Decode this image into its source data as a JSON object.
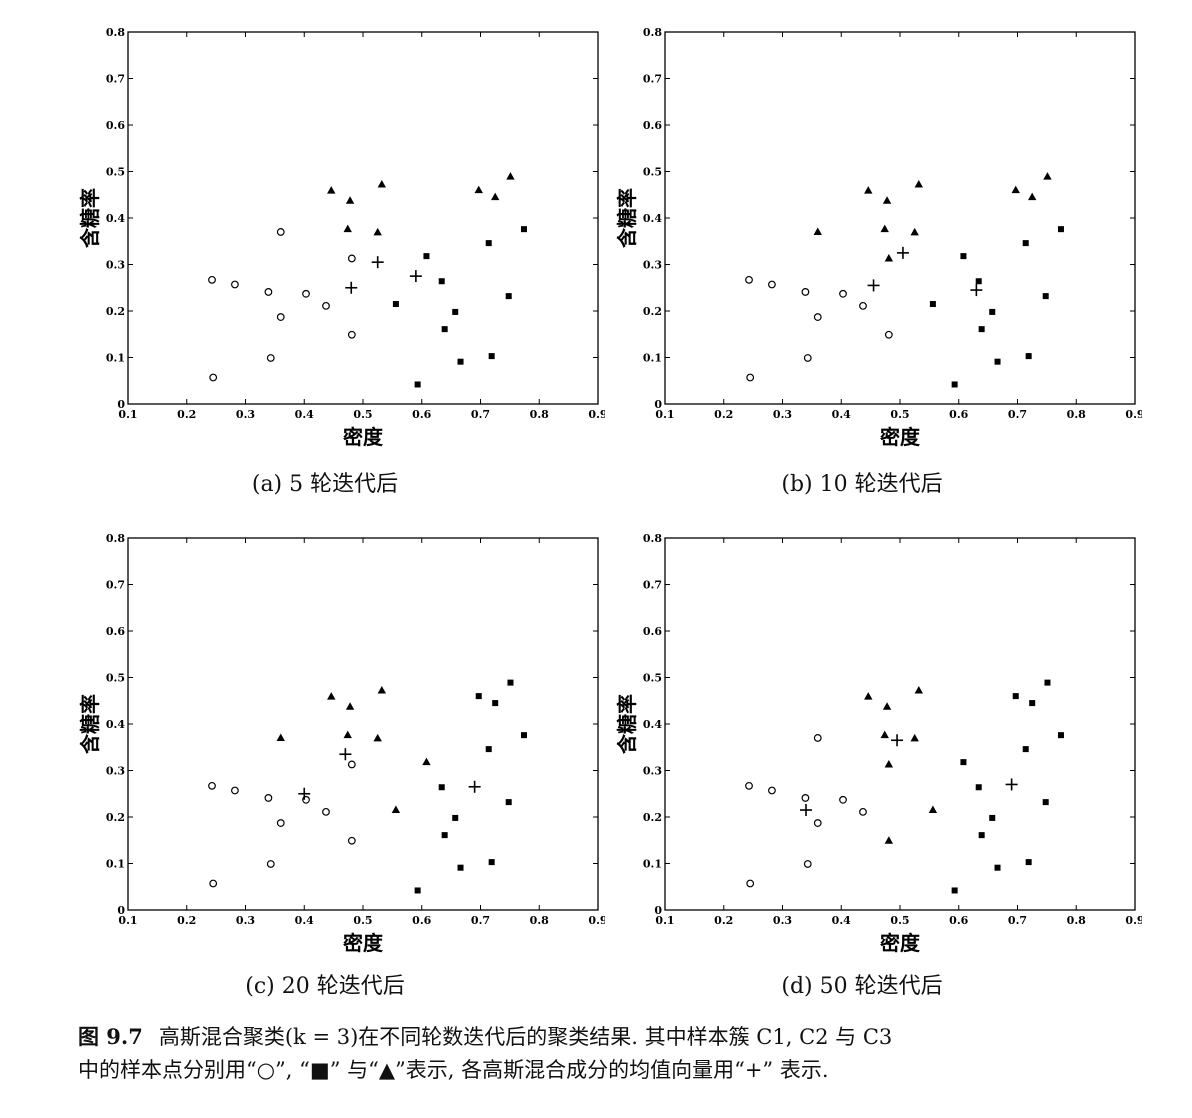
{
  "figure": {
    "label": "图 9.7",
    "caption_line1": "高斯混合聚类(k = 3)在不同轮数迭代后的聚类结果. 其中样本簇 C1, C2 与 C3",
    "caption_line2": "中的样本点分别用“○”, “■” 与“▲”表示, 各高斯混合成分的均值向量用“+” 表示."
  },
  "chart_data": [
    {
      "type": "scatter",
      "caption": "(a) 5 轮迭代后",
      "xlabel": "密度",
      "ylabel": "含糖率",
      "xlim": [
        0.1,
        0.9
      ],
      "ylim": [
        0,
        0.8
      ],
      "xticks": [
        "0.1",
        "0.2",
        "0.3",
        "0.4",
        "0.5",
        "0.6",
        "0.7",
        "0.8",
        "0.9"
      ],
      "yticks": [
        "0",
        "0.1",
        "0.2",
        "0.3",
        "0.4",
        "0.5",
        "0.6",
        "0.7",
        "0.8"
      ],
      "series": [
        {
          "marker": "circle",
          "points": [
            [
              0.243,
              0.267
            ],
            [
              0.245,
              0.057
            ],
            [
              0.282,
              0.257
            ],
            [
              0.343,
              0.099
            ],
            [
              0.339,
              0.241
            ],
            [
              0.36,
              0.37
            ],
            [
              0.36,
              0.187
            ],
            [
              0.403,
              0.237
            ],
            [
              0.437,
              0.211
            ],
            [
              0.481,
              0.149
            ],
            [
              0.481,
              0.313
            ]
          ]
        },
        {
          "marker": "square",
          "points": [
            [
              0.556,
              0.215
            ],
            [
              0.593,
              0.042
            ],
            [
              0.608,
              0.318
            ],
            [
              0.634,
              0.264
            ],
            [
              0.639,
              0.161
            ],
            [
              0.657,
              0.198
            ],
            [
              0.666,
              0.091
            ],
            [
              0.714,
              0.346
            ],
            [
              0.719,
              0.103
            ],
            [
              0.748,
              0.232
            ],
            [
              0.774,
              0.376
            ]
          ]
        },
        {
          "marker": "triangle",
          "points": [
            [
              0.446,
              0.459
            ],
            [
              0.474,
              0.376
            ],
            [
              0.478,
              0.437
            ],
            [
              0.525,
              0.369
            ],
            [
              0.532,
              0.472
            ],
            [
              0.697,
              0.46
            ],
            [
              0.725,
              0.445
            ],
            [
              0.751,
              0.489
            ]
          ]
        },
        {
          "marker": "plus",
          "points": [
            [
              0.48,
              0.25
            ],
            [
              0.525,
              0.305
            ],
            [
              0.59,
              0.275
            ]
          ]
        }
      ]
    },
    {
      "type": "scatter",
      "caption": "(b) 10 轮迭代后",
      "xlabel": "密度",
      "ylabel": "含糖率",
      "xlim": [
        0.1,
        0.9
      ],
      "ylim": [
        0,
        0.8
      ],
      "xticks": [
        "0.1",
        "0.2",
        "0.3",
        "0.4",
        "0.5",
        "0.6",
        "0.7",
        "0.8",
        "0.9"
      ],
      "yticks": [
        "0",
        "0.1",
        "0.2",
        "0.3",
        "0.4",
        "0.5",
        "0.6",
        "0.7",
        "0.8"
      ],
      "series": [
        {
          "marker": "circle",
          "points": [
            [
              0.243,
              0.267
            ],
            [
              0.245,
              0.057
            ],
            [
              0.282,
              0.257
            ],
            [
              0.343,
              0.099
            ],
            [
              0.339,
              0.241
            ],
            [
              0.36,
              0.187
            ],
            [
              0.403,
              0.237
            ],
            [
              0.437,
              0.211
            ],
            [
              0.481,
              0.149
            ]
          ]
        },
        {
          "marker": "square",
          "points": [
            [
              0.556,
              0.215
            ],
            [
              0.593,
              0.042
            ],
            [
              0.608,
              0.318
            ],
            [
              0.634,
              0.264
            ],
            [
              0.639,
              0.161
            ],
            [
              0.657,
              0.198
            ],
            [
              0.666,
              0.091
            ],
            [
              0.714,
              0.346
            ],
            [
              0.719,
              0.103
            ],
            [
              0.748,
              0.232
            ],
            [
              0.774,
              0.376
            ]
          ]
        },
        {
          "marker": "triangle",
          "points": [
            [
              0.36,
              0.37
            ],
            [
              0.446,
              0.459
            ],
            [
              0.474,
              0.376
            ],
            [
              0.478,
              0.437
            ],
            [
              0.481,
              0.313
            ],
            [
              0.525,
              0.369
            ],
            [
              0.532,
              0.472
            ],
            [
              0.697,
              0.46
            ],
            [
              0.725,
              0.445
            ],
            [
              0.751,
              0.489
            ]
          ]
        },
        {
          "marker": "plus",
          "points": [
            [
              0.455,
              0.255
            ],
            [
              0.505,
              0.325
            ],
            [
              0.63,
              0.245
            ]
          ]
        }
      ]
    },
    {
      "type": "scatter",
      "caption": "(c) 20 轮迭代后",
      "xlabel": "密度",
      "ylabel": "含糖率",
      "xlim": [
        0.1,
        0.9
      ],
      "ylim": [
        0,
        0.8
      ],
      "xticks": [
        "0.1",
        "0.2",
        "0.3",
        "0.4",
        "0.5",
        "0.6",
        "0.7",
        "0.8",
        "0.9"
      ],
      "yticks": [
        "0",
        "0.1",
        "0.2",
        "0.3",
        "0.4",
        "0.5",
        "0.6",
        "0.7",
        "0.8"
      ],
      "series": [
        {
          "marker": "circle",
          "points": [
            [
              0.243,
              0.267
            ],
            [
              0.245,
              0.057
            ],
            [
              0.282,
              0.257
            ],
            [
              0.343,
              0.099
            ],
            [
              0.339,
              0.241
            ],
            [
              0.36,
              0.187
            ],
            [
              0.403,
              0.237
            ],
            [
              0.437,
              0.211
            ],
            [
              0.481,
              0.149
            ],
            [
              0.481,
              0.313
            ]
          ]
        },
        {
          "marker": "square",
          "points": [
            [
              0.593,
              0.042
            ],
            [
              0.634,
              0.264
            ],
            [
              0.639,
              0.161
            ],
            [
              0.657,
              0.198
            ],
            [
              0.666,
              0.091
            ],
            [
              0.697,
              0.46
            ],
            [
              0.714,
              0.346
            ],
            [
              0.719,
              0.103
            ],
            [
              0.725,
              0.445
            ],
            [
              0.748,
              0.232
            ],
            [
              0.751,
              0.489
            ],
            [
              0.774,
              0.376
            ]
          ]
        },
        {
          "marker": "triangle",
          "points": [
            [
              0.36,
              0.37
            ],
            [
              0.446,
              0.459
            ],
            [
              0.474,
              0.376
            ],
            [
              0.478,
              0.437
            ],
            [
              0.525,
              0.369
            ],
            [
              0.532,
              0.472
            ],
            [
              0.556,
              0.215
            ],
            [
              0.608,
              0.318
            ]
          ]
        },
        {
          "marker": "plus",
          "points": [
            [
              0.4,
              0.25
            ],
            [
              0.47,
              0.335
            ],
            [
              0.69,
              0.265
            ]
          ]
        }
      ]
    },
    {
      "type": "scatter",
      "caption": "(d) 50 轮迭代后",
      "xlabel": "密度",
      "ylabel": "含糖率",
      "xlim": [
        0.1,
        0.9
      ],
      "ylim": [
        0,
        0.8
      ],
      "xticks": [
        "0.1",
        "0.2",
        "0.3",
        "0.4",
        "0.5",
        "0.6",
        "0.7",
        "0.8",
        "0.9"
      ],
      "yticks": [
        "0",
        "0.1",
        "0.2",
        "0.3",
        "0.4",
        "0.5",
        "0.6",
        "0.7",
        "0.8"
      ],
      "series": [
        {
          "marker": "circle",
          "points": [
            [
              0.243,
              0.267
            ],
            [
              0.245,
              0.057
            ],
            [
              0.282,
              0.257
            ],
            [
              0.343,
              0.099
            ],
            [
              0.339,
              0.241
            ],
            [
              0.36,
              0.37
            ],
            [
              0.36,
              0.187
            ],
            [
              0.403,
              0.237
            ],
            [
              0.437,
              0.211
            ]
          ]
        },
        {
          "marker": "square",
          "points": [
            [
              0.593,
              0.042
            ],
            [
              0.608,
              0.318
            ],
            [
              0.634,
              0.264
            ],
            [
              0.639,
              0.161
            ],
            [
              0.657,
              0.198
            ],
            [
              0.666,
              0.091
            ],
            [
              0.697,
              0.46
            ],
            [
              0.714,
              0.346
            ],
            [
              0.719,
              0.103
            ],
            [
              0.725,
              0.445
            ],
            [
              0.748,
              0.232
            ],
            [
              0.751,
              0.489
            ],
            [
              0.774,
              0.376
            ]
          ]
        },
        {
          "marker": "triangle",
          "points": [
            [
              0.446,
              0.459
            ],
            [
              0.474,
              0.376
            ],
            [
              0.478,
              0.437
            ],
            [
              0.481,
              0.149
            ],
            [
              0.481,
              0.313
            ],
            [
              0.525,
              0.369
            ],
            [
              0.532,
              0.472
            ],
            [
              0.556,
              0.215
            ]
          ]
        },
        {
          "marker": "plus",
          "points": [
            [
              0.34,
              0.215
            ],
            [
              0.495,
              0.365
            ],
            [
              0.69,
              0.27
            ]
          ]
        }
      ]
    }
  ]
}
